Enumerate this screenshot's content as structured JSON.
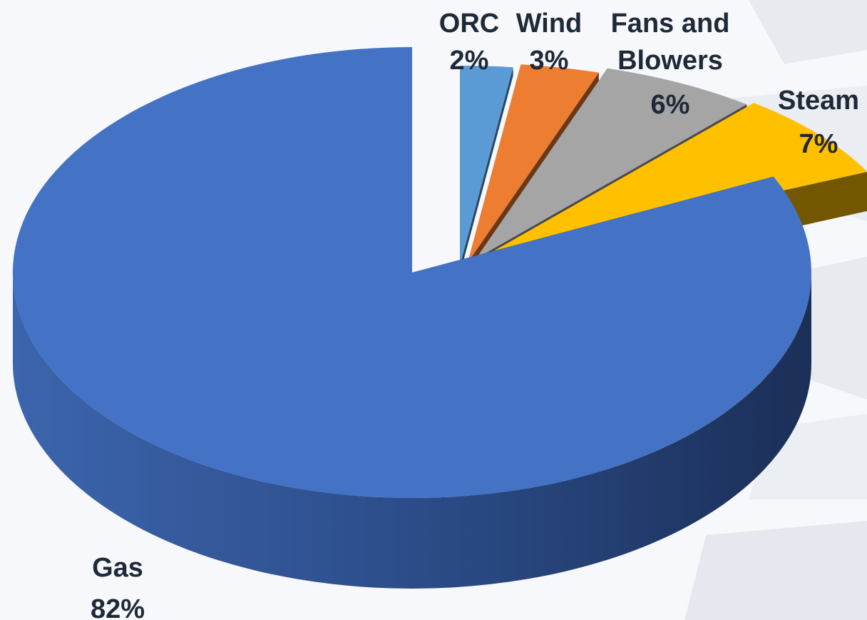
{
  "chart_data": {
    "type": "pie",
    "style": "3d-exploded",
    "legend": "none",
    "slices": [
      {
        "name": "ORC",
        "value_label": "2%",
        "value": 2,
        "color": "#5b9bd5"
      },
      {
        "name": "Wind",
        "value_label": "3%",
        "value": 3,
        "color": "#ed7d31"
      },
      {
        "name": "Fans and Blowers",
        "value_label": "6%",
        "value": 6,
        "color": "#a5a5a5"
      },
      {
        "name": "Steam",
        "value_label": "7%",
        "value": 7,
        "color": "#ffc000"
      },
      {
        "name": "Gas",
        "value_label": "82%",
        "value": 82,
        "color": "#4472c4"
      }
    ]
  }
}
